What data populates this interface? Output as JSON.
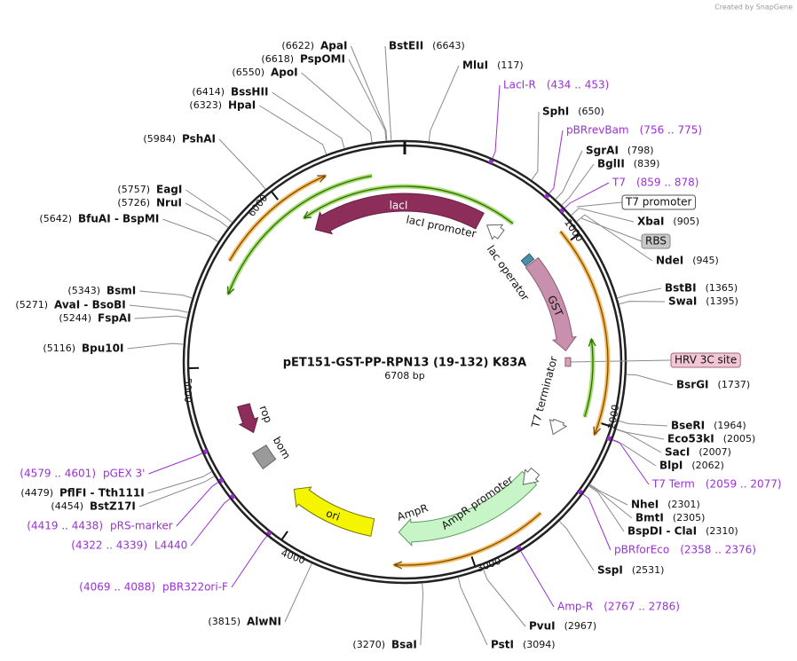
{
  "credit": "Created by SnapGene",
  "title": "pET151-GST-PP-RPN13 (19-132) K83A",
  "length": "6708 bp",
  "enzymes": [
    {
      "name": "ApaI",
      "position": "(6622)"
    },
    {
      "name": "PspOMI",
      "position": "(6618)"
    },
    {
      "name": "ApoI",
      "position": "(6550)"
    },
    {
      "name": "BssHII",
      "position": "(6414)"
    },
    {
      "name": "HpaI",
      "position": "(6323)"
    },
    {
      "name": "PshAI",
      "position": "(5984)"
    },
    {
      "name": "EagI",
      "position": "(5757)"
    },
    {
      "name": "NruI",
      "position": "(5726)"
    },
    {
      "name": "BfuAI - BspMI",
      "position": "(5642)"
    },
    {
      "name": "BsmI",
      "position": "(5343)"
    },
    {
      "name": "AvaI - BsoBI",
      "position": "(5271)"
    },
    {
      "name": "FspAI",
      "position": "(5244)"
    },
    {
      "name": "Bpu10I",
      "position": "(5116)"
    },
    {
      "name": "PflFI - Tth111I",
      "position": "(4479)"
    },
    {
      "name": "BstZ17I",
      "position": "(4454)"
    },
    {
      "name": "AlwNI",
      "position": "(3815)"
    },
    {
      "name": "BsaI",
      "position": "(3270)"
    },
    {
      "name": "BstEII",
      "position": "(6643)"
    },
    {
      "name": "MluI",
      "position": "(117)"
    },
    {
      "name": "SphI",
      "position": "(650)"
    },
    {
      "name": "SgrAI",
      "position": "(798)"
    },
    {
      "name": "BglII",
      "position": "(839)"
    },
    {
      "name": "XbaI",
      "position": "(905)"
    },
    {
      "name": "NdeI",
      "position": "(945)"
    },
    {
      "name": "BstBI",
      "position": "(1365)"
    },
    {
      "name": "SwaI",
      "position": "(1395)"
    },
    {
      "name": "BsrGI",
      "position": "(1737)"
    },
    {
      "name": "BseRI",
      "position": "(1964)"
    },
    {
      "name": "Eco53kI",
      "position": "(2005)"
    },
    {
      "name": "SacI",
      "position": "(2007)"
    },
    {
      "name": "BlpI",
      "position": "(2062)"
    },
    {
      "name": "NheI",
      "position": "(2301)"
    },
    {
      "name": "BmtI",
      "position": "(2305)"
    },
    {
      "name": "BspDI - ClaI",
      "position": "(2310)"
    },
    {
      "name": "SspI",
      "position": "(2531)"
    },
    {
      "name": "PvuI",
      "position": "(2967)"
    },
    {
      "name": "PstI",
      "position": "(3094)"
    }
  ],
  "primers": [
    {
      "name": "LacI-R",
      "range": "(434 .. 453)"
    },
    {
      "name": "pBRrevBam",
      "range": "(756 .. 775)"
    },
    {
      "name": "T7",
      "range": "(859 .. 878)"
    },
    {
      "name": "T7 Term",
      "range": "(2059 .. 2077)"
    },
    {
      "name": "pBRforEco",
      "range": "(2358 .. 2376)"
    },
    {
      "name": "Amp-R",
      "range": "(2767 .. 2786)"
    },
    {
      "name": "pGEX 3'",
      "range": "(4579 .. 4601)"
    },
    {
      "name": "pRS-marker",
      "range": "(4419 .. 4438)"
    },
    {
      "name": "L4440",
      "range": "(4322 .. 4339)"
    },
    {
      "name": "pBR322ori-F",
      "range": "(4069 .. 4088)"
    }
  ],
  "boxed_features": [
    {
      "name": "T7 promoter"
    },
    {
      "name": "RBS"
    },
    {
      "name": "HRV 3C site"
    }
  ],
  "features": [
    {
      "name": "lacI"
    },
    {
      "name": "lacI promoter"
    },
    {
      "name": "lac operator"
    },
    {
      "name": "GST"
    },
    {
      "name": "T7 terminator"
    },
    {
      "name": "rop"
    },
    {
      "name": "bom"
    },
    {
      "name": "ori"
    },
    {
      "name": "AmpR"
    },
    {
      "name": "AmpR promoter"
    }
  ],
  "ticks": [
    1000,
    2000,
    3000,
    4000,
    5000,
    6000
  ]
}
